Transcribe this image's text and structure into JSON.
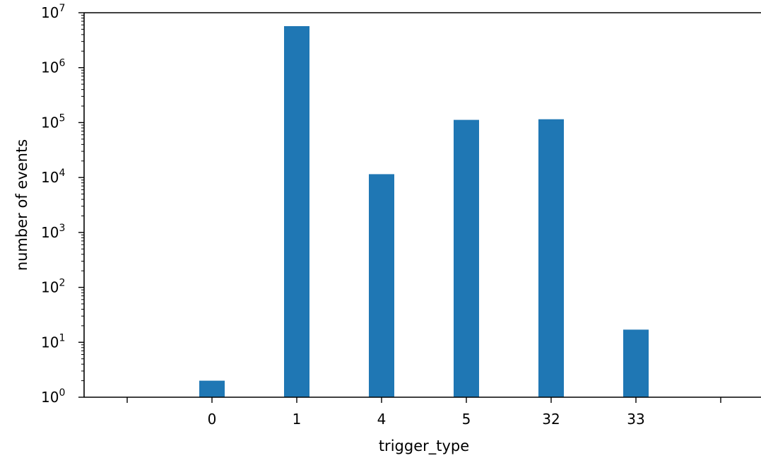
{
  "chart_data": {
    "type": "bar",
    "xlabel": "trigger_type",
    "ylabel": "number of events",
    "y_scale": "log",
    "ylim": [
      1,
      10000000
    ],
    "categories": [
      "0",
      "1",
      "4",
      "5",
      "32",
      "33"
    ],
    "values": [
      2,
      5700000,
      11500,
      112000,
      115000,
      17
    ],
    "y_ticks": [
      {
        "base": "10",
        "exp": "0"
      },
      {
        "base": "10",
        "exp": "1"
      },
      {
        "base": "10",
        "exp": "2"
      },
      {
        "base": "10",
        "exp": "3"
      },
      {
        "base": "10",
        "exp": "4"
      },
      {
        "base": "10",
        "exp": "5"
      },
      {
        "base": "10",
        "exp": "6"
      },
      {
        "base": "10",
        "exp": "7"
      }
    ],
    "bar_color": "#1f77b4",
    "grid": false,
    "legend": "none"
  }
}
